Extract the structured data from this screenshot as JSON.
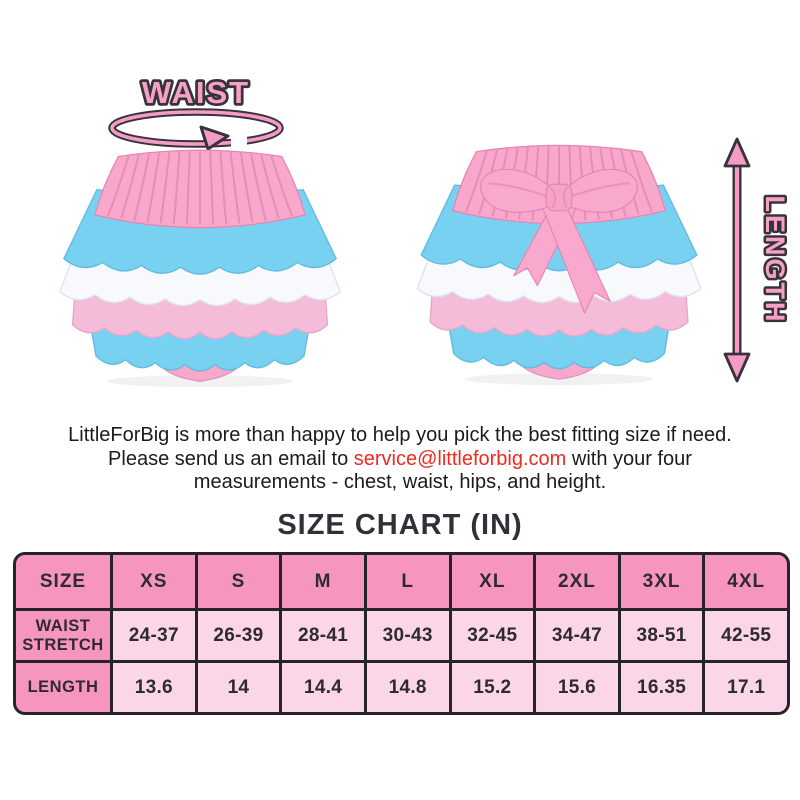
{
  "annotations": {
    "waist_label": "WAIST",
    "length_label": "LENGTH"
  },
  "note": {
    "line1": "LittleForBig is more than happy to help you pick the best fitting size if need.",
    "line2_before": "Please send us an email to ",
    "email": "service@littleforbig.com",
    "line2_after": " with your four",
    "line3": "measurements - chest, waist, hips, and height."
  },
  "size_chart": {
    "title": "SIZE CHART (IN)",
    "columns": [
      "SIZE",
      "XS",
      "S",
      "M",
      "L",
      "XL",
      "2XL",
      "3XL",
      "4XL"
    ],
    "rows": [
      {
        "label": "WAIST STRETCH",
        "values": [
          "24-37",
          "26-39",
          "28-41",
          "30-43",
          "32-45",
          "34-47",
          "38-51",
          "42-55"
        ]
      },
      {
        "label": "LENGTH",
        "values": [
          "13.6",
          "14",
          "14.4",
          "14.8",
          "15.2",
          "15.6",
          "16.35",
          "17.1"
        ]
      }
    ]
  },
  "colors": {
    "accent_pink": "#F59BC6",
    "outline_dark": "#38323B",
    "table_header_pink": "#F795C1",
    "table_cell_pink": "#FBD5E8",
    "table_border_dark": "#26232B",
    "email_red": "#EF2A1E",
    "waistband_pink": "#F8A8CA",
    "ruffle_blue": "#79D1F2",
    "ruffle_white": "#F7F9FC",
    "ruffle_pink": "#F4BCD9",
    "bow_pink": "#F8A9CD"
  }
}
